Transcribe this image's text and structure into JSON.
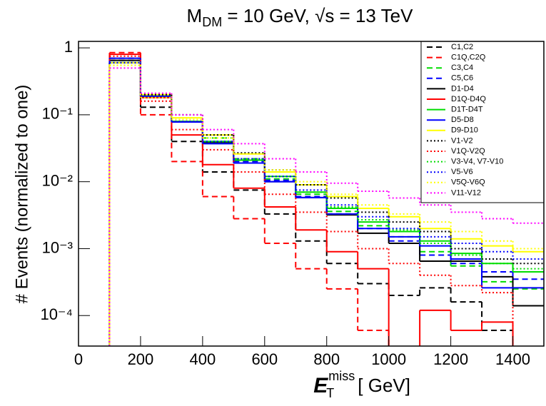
{
  "chart_data": {
    "type": "histogram",
    "title": {
      "main": "M",
      "sub": "DM",
      "rest": " = 10 GeV, √s = 13 TeV"
    },
    "x_label": {
      "main": "E",
      "sub": "T",
      "sup": "miss",
      "unit": "[ GeV]"
    },
    "y_label": "# Events (normalized to one)",
    "log_y": true,
    "legend": "top-right",
    "xlim": [
      0,
      1500
    ],
    "xticks": [
      0,
      200,
      400,
      600,
      800,
      1000,
      1200,
      1400
    ],
    "ylim": [
      3.5e-05,
      1.25
    ],
    "yticks": [
      {
        "value": 0.0001,
        "label": "10⁻⁴"
      },
      {
        "value": 0.001,
        "label": "10⁻³"
      },
      {
        "value": 0.01,
        "label": "10⁻²"
      },
      {
        "value": 0.1,
        "label": "10⁻¹"
      },
      1
    ],
    "bins": [
      100,
      200,
      300,
      400,
      500,
      600,
      700,
      800,
      900,
      1000,
      1100,
      1200,
      1300,
      1400,
      1500
    ],
    "series": [
      {
        "name": "C1,C2",
        "color": "#000000",
        "style": "dashed",
        "values": [
          0.7,
          0.13,
          0.04,
          0.014,
          0.0075,
          0.0033,
          0.0013,
          0.0006,
          0.0003,
          0.0002,
          0.00026,
          0.00016,
          6e-05,
          null
        ]
      },
      {
        "name": "C1Q,C2Q",
        "color": "#ff0000",
        "style": "dashed",
        "values": [
          0.85,
          0.1,
          0.02,
          0.006,
          0.0028,
          0.0012,
          0.0005,
          0.00025,
          6e-05,
          null,
          null,
          null,
          null,
          null
        ]
      },
      {
        "name": "C3,C4",
        "color": "#00dd00",
        "style": "dashed",
        "values": [
          0.6,
          0.19,
          0.08,
          0.045,
          0.022,
          0.011,
          0.0065,
          0.0036,
          0.0022,
          0.0015,
          0.0009,
          0.00055,
          0.00032,
          0.00025
        ]
      },
      {
        "name": "C5,C6",
        "color": "#0000ff",
        "style": "dashed",
        "values": [
          0.65,
          0.19,
          0.08,
          0.04,
          0.02,
          0.0105,
          0.006,
          0.0033,
          0.002,
          0.0013,
          0.0008,
          0.0006,
          0.00045,
          0.00035
        ]
      },
      {
        "name": "D1-D4",
        "color": "#000000",
        "style": "solid",
        "values": [
          0.65,
          0.19,
          0.08,
          0.038,
          0.019,
          0.01,
          0.0058,
          0.0032,
          0.0017,
          0.0012,
          0.00065,
          0.00065,
          0.00038,
          0.00014
        ]
      },
      {
        "name": "D1Q-D4Q",
        "color": "#ff0000",
        "style": "solid",
        "values": [
          0.8,
          0.18,
          0.05,
          0.018,
          0.008,
          0.0042,
          0.0019,
          0.0009,
          0.0005,
          null,
          0.00012,
          6e-05,
          8e-05,
          null
        ]
      },
      {
        "name": "D1T-D4T",
        "color": "#00dd00",
        "style": "solid",
        "values": [
          0.6,
          0.19,
          0.08,
          0.04,
          0.021,
          0.012,
          0.007,
          0.004,
          0.0025,
          0.0018,
          0.0013,
          0.00085,
          0.0006,
          0.00045
        ]
      },
      {
        "name": "D5-D8",
        "color": "#0000ff",
        "style": "solid",
        "values": [
          0.7,
          0.19,
          0.078,
          0.037,
          0.019,
          0.01,
          0.0058,
          0.0033,
          0.002,
          0.0015,
          0.0011,
          0.0007,
          0.00026,
          0.00026
        ]
      },
      {
        "name": "D9-D10",
        "color": "#ffff00",
        "style": "solid",
        "values": [
          0.6,
          0.2,
          0.09,
          0.05,
          0.026,
          0.014,
          0.009,
          0.006,
          0.004,
          0.003,
          0.002,
          0.0014,
          0.0011,
          0.0009
        ]
      },
      {
        "name": "V1-V2",
        "color": "#000000",
        "style": "dotted",
        "values": [
          0.6,
          0.2,
          0.1,
          0.05,
          0.027,
          0.015,
          0.009,
          0.0057,
          0.0035,
          0.0025,
          0.0018,
          0.001,
          0.0007,
          0.0006
        ]
      },
      {
        "name": "V1Q-V2Q",
        "color": "#ff0000",
        "style": "dotted",
        "values": [
          0.75,
          0.16,
          0.06,
          0.03,
          0.014,
          0.0065,
          0.0035,
          0.0018,
          0.001,
          0.0006,
          0.0004,
          0.00028,
          0.00022,
          null
        ]
      },
      {
        "name": "V3-V4, V7-V10",
        "color": "#00dd00",
        "style": "dotted",
        "values": [
          0.55,
          0.18,
          0.08,
          0.04,
          0.022,
          0.012,
          0.007,
          0.0042,
          0.0027,
          0.0019,
          0.0012,
          0.0008,
          0.0006,
          0.0005
        ]
      },
      {
        "name": "V5-V6",
        "color": "#0000ff",
        "style": "dotted",
        "values": [
          0.6,
          0.18,
          0.08,
          0.04,
          0.022,
          0.012,
          0.0075,
          0.0045,
          0.003,
          0.002,
          0.0015,
          0.0012,
          0.0009,
          0.0007
        ]
      },
      {
        "name": "V5Q-V6Q",
        "color": "#ffff00",
        "style": "dotted",
        "values": [
          0.55,
          0.18,
          0.085,
          0.045,
          0.026,
          0.015,
          0.01,
          0.0065,
          0.0045,
          0.0033,
          0.0025,
          0.0018,
          0.0013,
          0.001
        ]
      },
      {
        "name": "V11-V12",
        "color": "#ff00ff",
        "style": "dotted",
        "values": [
          0.5,
          0.21,
          0.1,
          0.06,
          0.037,
          0.022,
          0.014,
          0.0095,
          0.0072,
          0.0057,
          0.0045,
          0.0035,
          0.0028,
          0.0024
        ]
      }
    ]
  }
}
